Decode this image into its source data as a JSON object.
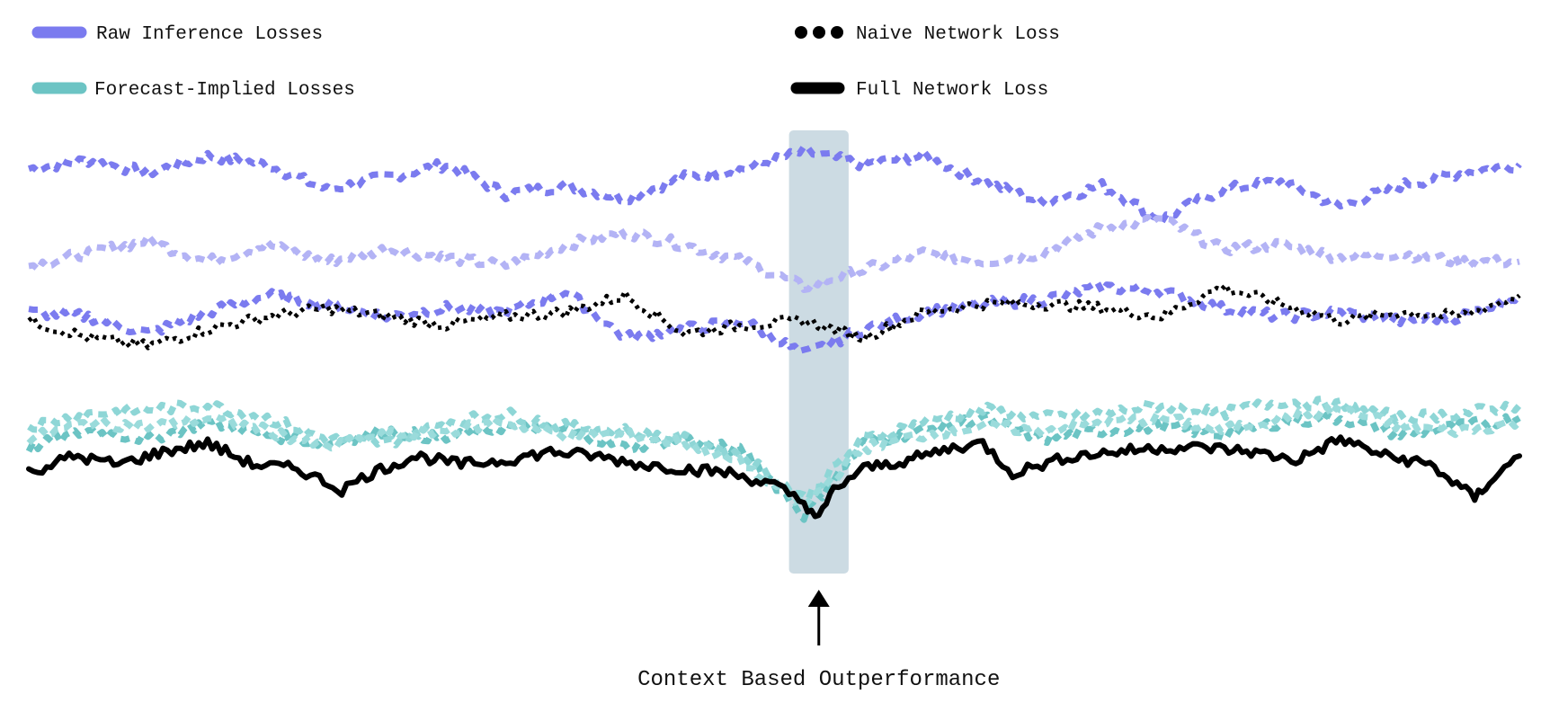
{
  "chart_data": {
    "type": "line",
    "title": "",
    "xlabel": "",
    "ylabel": "",
    "grid": false,
    "legend_placement": "top",
    "x_range": [
      0,
      200
    ],
    "y_range": [
      0,
      100
    ],
    "highlight": {
      "x_range": [
        102,
        110
      ]
    },
    "annotation": {
      "text": "Context Based Outperformance",
      "x": 106
    },
    "legend": [
      {
        "label": "Raw Inference Losses",
        "color": "#7b7bef",
        "style": "dashed"
      },
      {
        "label": "Naive Network Loss",
        "color": "#000000",
        "style": "dotted"
      },
      {
        "label": "Forecast-Implied Losses",
        "color": "#6cc4c4",
        "style": "dashed"
      },
      {
        "label": "Full Network Loss",
        "color": "#000000",
        "style": "solid"
      }
    ],
    "series": [
      {
        "group": "raw",
        "color": "#7b7bef",
        "opacity": 1.0,
        "dash": "10,7",
        "width": 7,
        "x": [
          0,
          8,
          16,
          24,
          32,
          40,
          48,
          56,
          64,
          72,
          80,
          88,
          96,
          104,
          112,
          120,
          128,
          136,
          144,
          152,
          160,
          168,
          176,
          184,
          192,
          200
        ],
        "y": [
          92,
          94,
          91,
          95,
          93,
          87,
          90,
          93,
          86,
          88,
          85,
          90,
          92,
          96,
          93,
          95,
          89,
          84,
          88,
          80,
          87,
          89,
          83,
          88,
          91,
          93
        ]
      },
      {
        "group": "raw",
        "color": "#b3b3f5",
        "opacity": 1.0,
        "dash": "10,7",
        "width": 7,
        "x": [
          0,
          8,
          16,
          24,
          32,
          40,
          48,
          56,
          64,
          72,
          80,
          88,
          96,
          104,
          112,
          120,
          128,
          136,
          144,
          152,
          160,
          168,
          176,
          184,
          192,
          200
        ],
        "y": [
          69,
          72,
          75,
          70,
          74,
          70,
          73,
          71,
          69,
          74,
          77,
          74,
          70,
          64,
          68,
          72,
          70,
          72,
          78,
          80,
          73,
          74,
          71,
          72,
          70,
          70
        ]
      },
      {
        "group": "raw",
        "color": "#7b7bef",
        "opacity": 1.0,
        "dash": "10,7",
        "width": 7,
        "x": [
          0,
          8,
          16,
          24,
          32,
          40,
          48,
          56,
          64,
          72,
          80,
          88,
          96,
          104,
          112,
          120,
          128,
          136,
          144,
          152,
          160,
          168,
          176,
          184,
          192,
          200
        ],
        "y": [
          58,
          57,
          53,
          58,
          62,
          60,
          57,
          59,
          58,
          63,
          52,
          54,
          56,
          48,
          54,
          58,
          60,
          61,
          64,
          63,
          59,
          57,
          58,
          56,
          57,
          62
        ]
      },
      {
        "group": "naive",
        "color": "#000000",
        "opacity": 1.0,
        "dash": "4,5",
        "width": 5,
        "x": [
          0,
          8,
          16,
          24,
          32,
          40,
          48,
          56,
          64,
          72,
          80,
          88,
          96,
          104,
          112,
          120,
          128,
          136,
          144,
          152,
          160,
          168,
          176,
          184,
          192,
          200
        ],
        "y": [
          56,
          52,
          50,
          54,
          57,
          59,
          57,
          55,
          57,
          58,
          62,
          53,
          55,
          56,
          52,
          58,
          60,
          60,
          59,
          57,
          64,
          60,
          56,
          58,
          57,
          62
        ]
      },
      {
        "group": "forecast",
        "color": "#6cc4c4",
        "opacity": 1.0,
        "dash": "10,7",
        "width": 7,
        "x": [
          0,
          8,
          16,
          24,
          32,
          40,
          48,
          56,
          64,
          72,
          80,
          88,
          96,
          104,
          112,
          120,
          128,
          136,
          144,
          152,
          160,
          168,
          176,
          184,
          192,
          200
        ],
        "y": [
          26,
          30,
          28,
          32,
          29,
          27,
          30,
          28,
          31,
          30,
          26,
          28,
          25,
          10,
          27,
          30,
          33,
          28,
          30,
          31,
          29,
          32,
          33,
          29,
          31,
          33
        ]
      },
      {
        "group": "forecast",
        "color": "#8ed6d6",
        "opacity": 1.0,
        "dash": "10,7",
        "width": 7,
        "x": [
          0,
          8,
          16,
          24,
          32,
          40,
          48,
          56,
          64,
          72,
          80,
          88,
          96,
          104,
          112,
          120,
          128,
          136,
          144,
          152,
          160,
          168,
          176,
          184,
          192,
          200
        ],
        "y": [
          31,
          34,
          35,
          36,
          33,
          28,
          27,
          32,
          34,
          31,
          30,
          28,
          24,
          14,
          28,
          32,
          35,
          33,
          34,
          36,
          34,
          37,
          36,
          33,
          34,
          36
        ]
      },
      {
        "group": "forecast",
        "color": "#9adbdb",
        "opacity": 1.0,
        "dash": "10,7",
        "width": 7,
        "x": [
          0,
          8,
          16,
          24,
          32,
          40,
          48,
          56,
          64,
          72,
          80,
          88,
          96,
          104,
          112,
          120,
          128,
          136,
          144,
          152,
          160,
          168,
          176,
          184,
          192,
          200
        ],
        "y": [
          28,
          32,
          31,
          33,
          30,
          26,
          29,
          30,
          32,
          29,
          29,
          27,
          22,
          12,
          26,
          29,
          31,
          30,
          32,
          33,
          30,
          33,
          35,
          31,
          30,
          32
        ]
      },
      {
        "group": "full",
        "color": "#000000",
        "opacity": 1.0,
        "dash": "",
        "width": 6,
        "x": [
          0,
          6,
          12,
          18,
          24,
          30,
          36,
          42,
          46,
          52,
          58,
          64,
          70,
          76,
          82,
          88,
          94,
          100,
          104,
          106,
          108,
          112,
          118,
          124,
          128,
          132,
          136,
          140,
          146,
          152,
          158,
          164,
          170,
          176,
          182,
          188,
          194,
          196,
          200
        ],
        "y": [
          20,
          24,
          22,
          25,
          27,
          22,
          21,
          16,
          20,
          24,
          22,
          23,
          25,
          24,
          22,
          21,
          20,
          17,
          13,
          9,
          16,
          21,
          23,
          26,
          27,
          20,
          22,
          24,
          25,
          26,
          26,
          25,
          23,
          28,
          24,
          22,
          14,
          18,
          24
        ]
      }
    ]
  }
}
